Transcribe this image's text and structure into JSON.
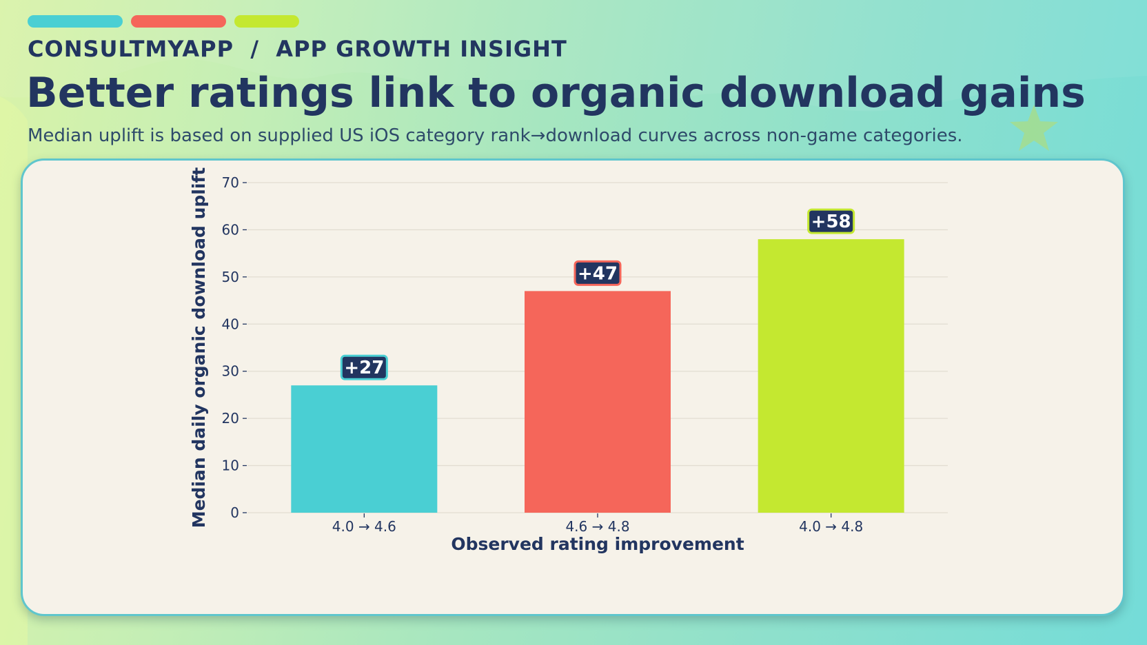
{
  "header": {
    "brand": "CONSULTMYAPP",
    "separator": "/",
    "section": "APP GROWTH INSIGHT",
    "title": "Better ratings link to organic download gains",
    "subtitle": "Median uplift is based on supplied US iOS category rank→download curves across non-game categories."
  },
  "accent_colors": [
    "#4acfd3",
    "#f5665a",
    "#c4e830"
  ],
  "theme": {
    "navy": "#223560",
    "grid": "#e2ddd2",
    "card_bg": "#f6f2e9"
  },
  "chart_data": {
    "type": "bar",
    "categories": [
      "4.0 → 4.6",
      "4.6 → 4.8",
      "4.0 → 4.8"
    ],
    "values": [
      27,
      47,
      58
    ],
    "value_labels": [
      "+27",
      "+47",
      "+58"
    ],
    "colors": [
      "#4acfd3",
      "#f5665a",
      "#c4e830"
    ],
    "xlabel": "Observed rating improvement",
    "ylabel": "Median daily organic download uplift",
    "ylim": [
      0,
      70
    ],
    "yticks": [
      0,
      10,
      20,
      30,
      40,
      50,
      60,
      70
    ],
    "grid": true
  }
}
